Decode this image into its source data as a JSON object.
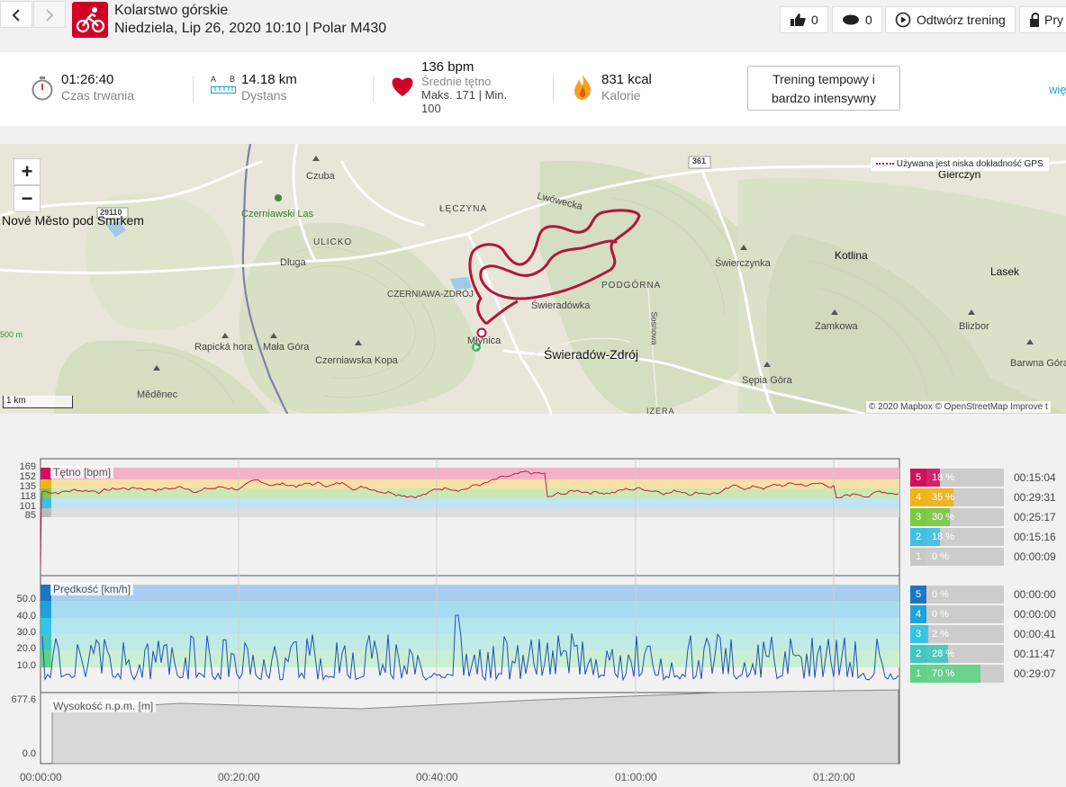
{
  "header": {
    "sport": "Kolarstwo górskie",
    "subtitle": "Niedziela, Lip 26, 2020 10:10 | Polar M430",
    "likes": "0",
    "comments": "0",
    "replay_label": "Odtwórz trening",
    "privacy_label": "Pry"
  },
  "summary": {
    "duration_value": "01:26:40",
    "duration_label": "Czas trwania",
    "distance_a": "A",
    "distance_b": "B",
    "distance_value": "14.18 km",
    "distance_label": "Dystans",
    "hr_value": "136 bpm",
    "hr_label": "Średnie tętno",
    "hr_maxmin": "Maks. 171  |  Min.",
    "hr_min": "100",
    "kcal_value": "831 kcal",
    "kcal_label": "Kalorie",
    "training_line1": "Trening tempowy i",
    "training_line2": "bardzo intensywny",
    "more_link": "wię"
  },
  "map": {
    "zoom_in": "+",
    "zoom_out": "−",
    "gps_legend": "Używana jest niska dokładność GPS",
    "attribution": "© 2020 Mapbox © OpenStreetMap Improve t",
    "scale": "1 km",
    "labels": {
      "nove_mesto": "Nové Město pod Smrkem",
      "czerniawski_las": "Czerniawski Las",
      "czuba": "Czuba",
      "dluga": "Długa",
      "ulicko": "ULICKO",
      "leczyna": "ŁĘCZYNA",
      "lwowecka": "Lwówecka",
      "czerniawa": "CZERNIAWA-ZDRÓJ",
      "podgorna": "PODGÓRNA",
      "swieradowka": "Świeradówka",
      "mlynica": "Młynica",
      "swieradow": "Świeradów-Zdrój",
      "rapicka": "Rapická hora",
      "mala_gora": "Mała Góra",
      "czerniawska_kopa": "Czerniawska Kopa",
      "medenec": "Měděnec",
      "swierczynka": "Świerczynka",
      "kotlina": "Kotlina",
      "lasek": "Lasek",
      "gierczyn": "Gierczyn",
      "zamkowa": "Zamkowa",
      "blizbor": "Blizbor",
      "barwna_gora": "Barwna Góra",
      "sepia_gora": "Sępia Góra",
      "sosnowa": "Sosnowa",
      "road361": "361",
      "road29110": "29110",
      "m500": "500 m",
      "izera": "IZERA"
    }
  },
  "charts": {
    "hr_label": "Tętno [bpm]",
    "hr_ticks": [
      "169",
      "152",
      "135",
      "118",
      "101",
      "85"
    ],
    "speed_label": "Prędkość [km/h]",
    "speed_ticks": [
      "50.0",
      "40.0",
      "30.0",
      "20.0",
      "10.0"
    ],
    "alt_label": "Wysokość n.p.m. [m]",
    "alt_ticks": [
      "677.6",
      "0.0"
    ],
    "x_ticks": [
      "00:00:00",
      "00:20:00",
      "00:40:00",
      "01:00:00",
      "01:20:00"
    ],
    "hr_zones": [
      {
        "num": "5",
        "pct": "18 %",
        "fraction": 0.18,
        "time": "00:15:04",
        "color": "#d1115e"
      },
      {
        "num": "4",
        "pct": "35 %",
        "fraction": 0.35,
        "time": "00:29:31",
        "color": "#f0b417"
      },
      {
        "num": "3",
        "pct": "30 %",
        "fraction": 0.3,
        "time": "00:25:17",
        "color": "#7ac943"
      },
      {
        "num": "2",
        "pct": "18 %",
        "fraction": 0.18,
        "time": "00:15:16",
        "color": "#3fc0e0"
      },
      {
        "num": "1",
        "pct": "0 %",
        "fraction": 0.0,
        "time": "00:00:09",
        "color": "#c8c8c8"
      }
    ],
    "speed_zones": [
      {
        "num": "5",
        "pct": "0 %",
        "fraction": 0.0,
        "time": "00:00:00",
        "color": "#1c77c3"
      },
      {
        "num": "4",
        "pct": "0 %",
        "fraction": 0.0,
        "time": "00:00:00",
        "color": "#1fa2d8"
      },
      {
        "num": "3",
        "pct": "2 %",
        "fraction": 0.02,
        "time": "00:00:41",
        "color": "#35c4e4"
      },
      {
        "num": "2",
        "pct": "28 %",
        "fraction": 0.28,
        "time": "00:11:47",
        "color": "#40c8c0"
      },
      {
        "num": "1",
        "pct": "70 %",
        "fraction": 0.7,
        "time": "00:29:07",
        "color": "#5ed384"
      }
    ]
  }
}
